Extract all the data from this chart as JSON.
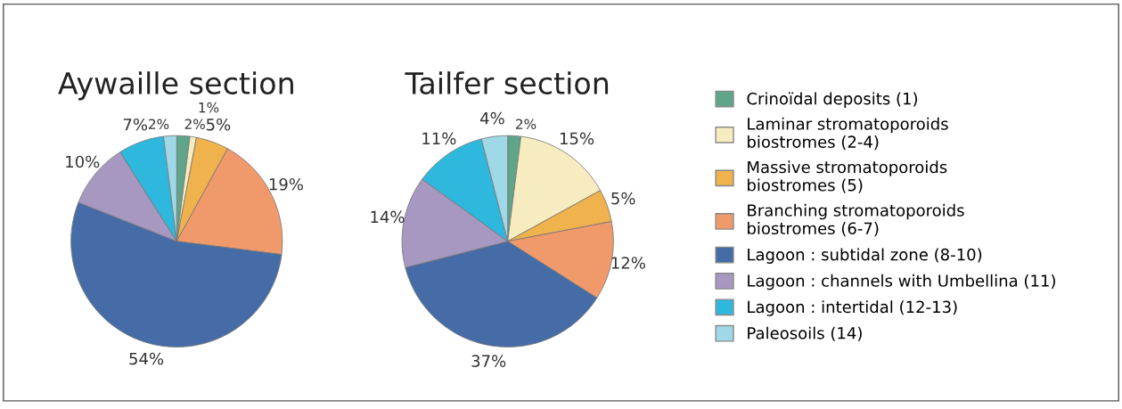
{
  "chart_data": [
    {
      "type": "pie",
      "title": "Aywaille section",
      "legend": "right",
      "categories": [
        "Crinoïdal deposits (1)",
        "Laminar stromatoporoids\nbiostromes (2-4)",
        "Massive stromatoporoids\nbiostromes (5)",
        "Branching stromatoporoids\nbiostromes (6-7)",
        "Lagoon : subtidal zone (8-10)",
        "Lagoon : channels with Umbellina (11)",
        "Lagoon : intertidal (12-13)",
        "Paleosoils (14)"
      ],
      "values": [
        2,
        1,
        5,
        19,
        54,
        10,
        7,
        2
      ],
      "value_labels": [
        "2%",
        "1%",
        "5%",
        "19%",
        "54%",
        "10%",
        "7%",
        "2%"
      ],
      "colors": [
        "#5fa58a",
        "#f7ecc0",
        "#f0b24c",
        "#f09a6c",
        "#456ca6",
        "#a798c2",
        "#2fb8de",
        "#9fd8e6"
      ]
    },
    {
      "type": "pie",
      "title": "Tailfer section",
      "categories": [
        null,
        null,
        null,
        null,
        null,
        null,
        null,
        null
      ],
      "values": [
        2,
        15,
        5,
        12,
        37,
        14,
        11,
        4
      ],
      "value_labels": [
        "2%",
        "15%",
        "5%",
        "12%",
        "37%",
        "14%",
        "11%",
        "4%"
      ],
      "colors": [
        "#5fa58a",
        "#f7ecc0",
        "#f0b24c",
        "#f09a6c",
        "#456ca6",
        "#a798c2",
        "#2fb8de",
        "#9fd8e6"
      ]
    }
  ]
}
